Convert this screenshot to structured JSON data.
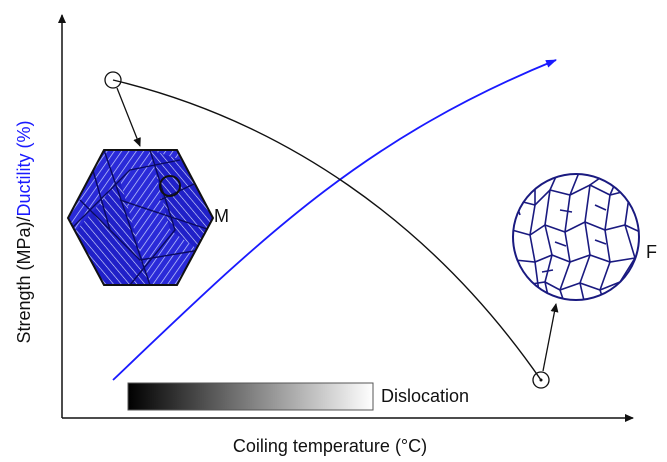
{
  "axes": {
    "x_label": "Coiling temperature (°C)",
    "y_label_strength": "Strength (MPa)/",
    "y_label_ductility": "Ductility (%)"
  },
  "labels": {
    "martensite": "M",
    "ferrite": "F",
    "dislocation": "Dislocation"
  }
}
